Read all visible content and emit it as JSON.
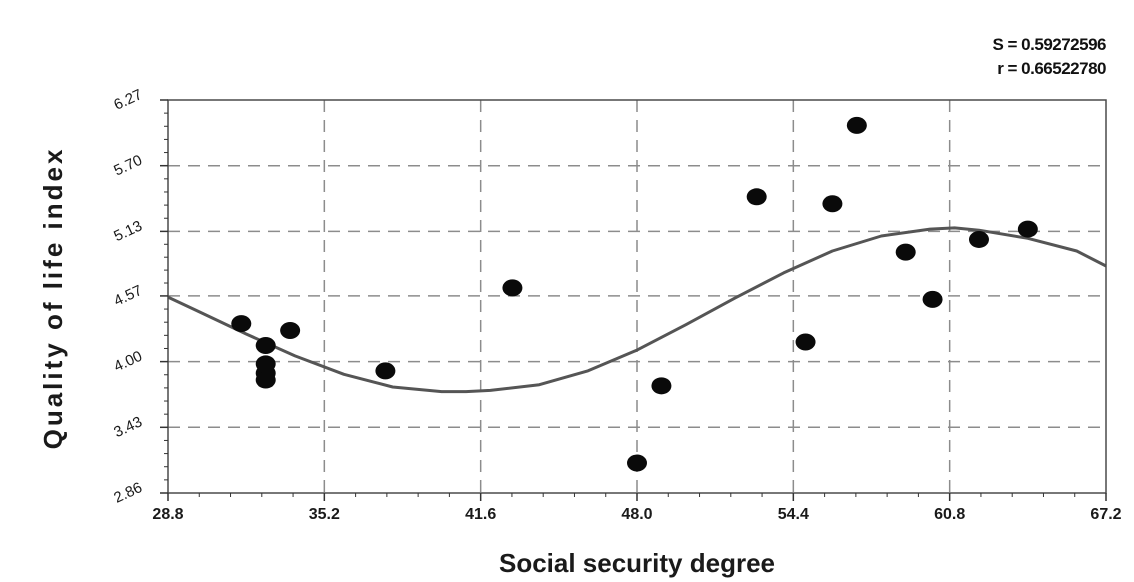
{
  "stats": {
    "s_line": "S = 0.59272596",
    "r_line": "r = 0.66522780"
  },
  "chart_data": {
    "type": "scatter",
    "xlabel": "Social security degree",
    "ylabel": "Quality of life index",
    "xlim": [
      28.8,
      67.2
    ],
    "ylim": [
      2.86,
      6.27
    ],
    "x_ticks": [
      "28.8",
      "35.2",
      "41.6",
      "48.0",
      "54.4",
      "60.8",
      "67.2"
    ],
    "y_ticks": [
      "2.86",
      "3.43",
      "4.00",
      "4.57",
      "5.13",
      "5.70",
      "6.27"
    ],
    "grid": true,
    "points": [
      {
        "x": 31.8,
        "y": 4.33
      },
      {
        "x": 32.8,
        "y": 4.14
      },
      {
        "x": 32.8,
        "y": 3.98
      },
      {
        "x": 32.8,
        "y": 3.9
      },
      {
        "x": 32.8,
        "y": 3.84
      },
      {
        "x": 33.8,
        "y": 4.27
      },
      {
        "x": 37.7,
        "y": 3.92
      },
      {
        "x": 42.9,
        "y": 4.64
      },
      {
        "x": 48.0,
        "y": 3.12
      },
      {
        "x": 49.0,
        "y": 3.79
      },
      {
        "x": 52.9,
        "y": 5.43
      },
      {
        "x": 54.9,
        "y": 4.17
      },
      {
        "x": 56.0,
        "y": 5.37
      },
      {
        "x": 57.0,
        "y": 6.05
      },
      {
        "x": 59.0,
        "y": 4.95
      },
      {
        "x": 60.1,
        "y": 4.54
      },
      {
        "x": 62.0,
        "y": 5.06
      },
      {
        "x": 64.0,
        "y": 5.15
      }
    ],
    "fit_curve": {
      "x": [
        28.8,
        30.0,
        32.0,
        34.0,
        36.0,
        38.0,
        40.0,
        41.0,
        42.0,
        44.0,
        46.0,
        48.0,
        50.0,
        52.0,
        54.0,
        56.0,
        58.0,
        60.0,
        61.0,
        62.0,
        64.0,
        66.0,
        67.2
      ],
      "y": [
        4.56,
        4.44,
        4.24,
        4.05,
        3.89,
        3.78,
        3.74,
        3.74,
        3.75,
        3.8,
        3.92,
        4.1,
        4.32,
        4.55,
        4.77,
        4.96,
        5.09,
        5.15,
        5.16,
        5.14,
        5.07,
        4.96,
        4.83
      ]
    }
  }
}
